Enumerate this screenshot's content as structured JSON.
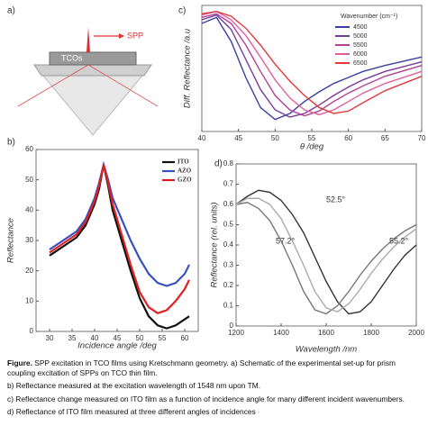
{
  "panel_a": {
    "label": "a)",
    "layer": "TCOs",
    "wave": "SPP"
  },
  "chart_data": [
    {
      "type": "line",
      "label": "c)",
      "xlabel": "θ /deg",
      "ylabel": "Diff. Reflectance /a.u",
      "legend_title": "Wavenumber (cm⁻¹)",
      "x": [
        40,
        42,
        44,
        46,
        48,
        50,
        52,
        54,
        56,
        58,
        60,
        62,
        65,
        70
      ],
      "xlim": [
        40,
        70
      ],
      "xticks": [
        40,
        45,
        50,
        55,
        60,
        65,
        70
      ],
      "ylim": [
        0,
        1.05
      ],
      "series": [
        {
          "name": "4500",
          "color": "#3a3fa0",
          "values": [
            0.9,
            0.95,
            0.75,
            0.45,
            0.2,
            0.1,
            0.15,
            0.25,
            0.33,
            0.4,
            0.45,
            0.5,
            0.55,
            0.62
          ]
        },
        {
          "name": "5000",
          "color": "#7a3a9a",
          "values": [
            0.93,
            0.97,
            0.85,
            0.6,
            0.35,
            0.18,
            0.12,
            0.15,
            0.22,
            0.3,
            0.37,
            0.43,
            0.5,
            0.58
          ]
        },
        {
          "name": "5500",
          "color": "#b0409a",
          "values": [
            0.95,
            0.98,
            0.9,
            0.72,
            0.5,
            0.3,
            0.18,
            0.13,
            0.17,
            0.25,
            0.32,
            0.38,
            0.46,
            0.55
          ]
        },
        {
          "name": "6000",
          "color": "#e0609a",
          "values": [
            0.97,
            1.0,
            0.93,
            0.8,
            0.62,
            0.43,
            0.28,
            0.18,
            0.14,
            0.18,
            0.25,
            0.32,
            0.4,
            0.5
          ]
        },
        {
          "name": "6500",
          "color": "#e23a3a",
          "values": [
            0.98,
            1.0,
            0.96,
            0.86,
            0.72,
            0.56,
            0.42,
            0.3,
            0.2,
            0.15,
            0.17,
            0.24,
            0.34,
            0.46
          ]
        }
      ]
    },
    {
      "type": "line",
      "label": "b)",
      "xlabel": "Incidence angle /deg",
      "ylabel": "Reflectance",
      "x": [
        30,
        32,
        34,
        36,
        38,
        40,
        41,
        42,
        43,
        44,
        46,
        48,
        50,
        52,
        54,
        56,
        58,
        60,
        61
      ],
      "xlim": [
        27,
        63
      ],
      "xticks": [
        30,
        35,
        40,
        45,
        50,
        55,
        60
      ],
      "ylim": [
        0,
        60
      ],
      "yticks": [
        0,
        10,
        20,
        30,
        40,
        50,
        60
      ],
      "series": [
        {
          "name": "ITO",
          "color": "#111111",
          "values": [
            25,
            27,
            29,
            31,
            35,
            42,
            47,
            55,
            48,
            40,
            30,
            20,
            11,
            5,
            2,
            1,
            2,
            4,
            5
          ]
        },
        {
          "name": "AZO",
          "color": "#3a50c0",
          "values": [
            27,
            29,
            31,
            33,
            37,
            44,
            49,
            55,
            50,
            44,
            37,
            30,
            24,
            19,
            16,
            15,
            16,
            19,
            22
          ]
        },
        {
          "name": "GZO",
          "color": "#e02020",
          "values": [
            26,
            28,
            30,
            32,
            36,
            43,
            48,
            55,
            49,
            42,
            32,
            22,
            13,
            8,
            6,
            7,
            10,
            14,
            17
          ]
        }
      ]
    },
    {
      "type": "line",
      "label": "d)",
      "xlabel": "Wavelength /nm",
      "ylabel": "Reflectance (rel. units)",
      "x": [
        1200,
        1250,
        1300,
        1350,
        1400,
        1450,
        1500,
        1550,
        1600,
        1650,
        1700,
        1750,
        1800,
        1850,
        1900,
        1950,
        2000
      ],
      "xlim": [
        1200,
        2000
      ],
      "xticks": [
        1200,
        1400,
        1600,
        1800,
        2000
      ],
      "ylim": [
        0,
        0.8
      ],
      "yticks": [
        0,
        0.1,
        0.2,
        0.3,
        0.4,
        0.5,
        0.6,
        0.7,
        0.8
      ],
      "series": [
        {
          "name": "52.5°",
          "color": "#333333",
          "values": [
            0.6,
            0.64,
            0.67,
            0.66,
            0.62,
            0.55,
            0.46,
            0.34,
            0.22,
            0.12,
            0.06,
            0.07,
            0.12,
            0.2,
            0.28,
            0.35,
            0.4
          ]
        },
        {
          "name": "57.2°",
          "color": "#777777",
          "values": [
            0.6,
            0.61,
            0.58,
            0.52,
            0.42,
            0.3,
            0.17,
            0.08,
            0.06,
            0.1,
            0.17,
            0.25,
            0.32,
            0.38,
            0.43,
            0.47,
            0.5
          ]
        },
        {
          "name": "55.2°",
          "color": "#aaaaaa",
          "values": [
            0.6,
            0.63,
            0.63,
            0.6,
            0.53,
            0.42,
            0.3,
            0.17,
            0.09,
            0.07,
            0.11,
            0.18,
            0.26,
            0.33,
            0.39,
            0.44,
            0.48
          ]
        }
      ]
    }
  ],
  "caption": {
    "figure_label": "Figure.",
    "paragraphs": [
      "SPP excitation in TCO films using Kretschmann geometry. a) Schematic of the experimental set-up for prism coupling excitation of SPPs on TCO thin film.",
      "b) Reflectance measured at the excitation wavelength of 1548 nm upon TM.",
      "c) Reflectance change measured on ITO film as a function of incidence angle for many different incident wavenumbers.",
      "d) Reflectance of ITO film measured at three different angles of incidences"
    ]
  }
}
